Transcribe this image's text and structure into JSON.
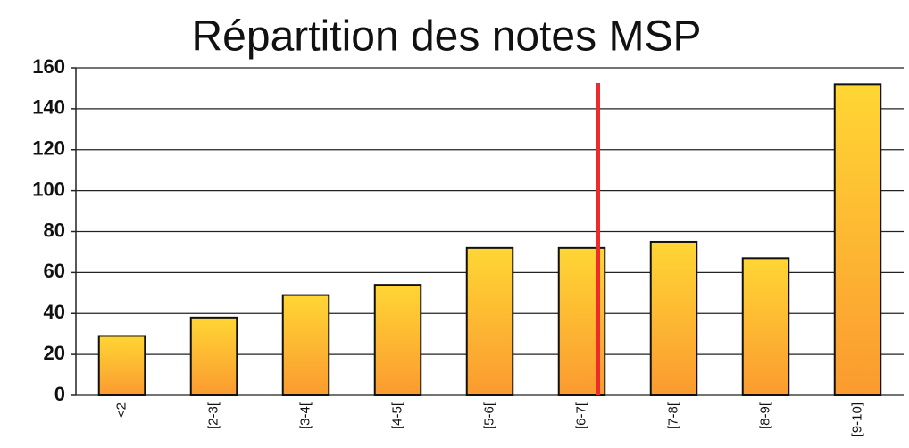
{
  "chart_data": {
    "type": "bar",
    "title": "Répartition des notes  MSP",
    "categories": [
      "<2",
      "[2-3[",
      "[3-4[",
      "[4-5[",
      "[5-6[",
      "[6-7[",
      "[7-8[",
      "[8-9[",
      "[9-10]"
    ],
    "values": [
      29,
      38,
      49,
      54,
      72,
      72,
      75,
      67,
      152
    ],
    "gradient": [
      "#ffd634",
      "#fb9a30"
    ],
    "ylim": [
      0,
      160
    ],
    "yticks": [
      0,
      20,
      40,
      60,
      80,
      100,
      120,
      140,
      160
    ],
    "grid": true
  }
}
